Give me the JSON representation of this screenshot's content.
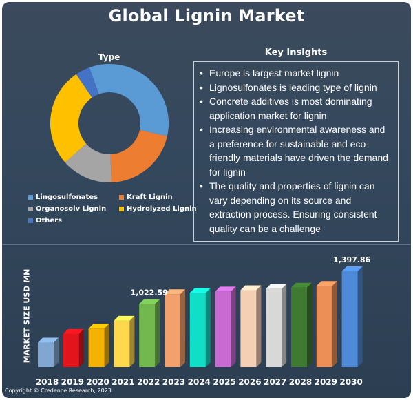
{
  "title": "Global Lignin Market",
  "chart_data": [
    {
      "type": "pie",
      "variant": "donut",
      "title": "Type",
      "categories": [
        "Lingosulfonates",
        "Kraft Lignin",
        "Organosolv Lignin",
        "Hydrolyzed Lignin",
        "Others"
      ],
      "values": [
        34,
        21,
        14,
        27,
        4
      ],
      "colors": [
        "#5b9bd5",
        "#ed7d31",
        "#a5a5a5",
        "#ffc000",
        "#4472c4"
      ],
      "legend": [
        {
          "label": "Lingosulfonates",
          "color": "#5b9bd5"
        },
        {
          "label": "Kraft Lignin",
          "color": "#ed7d31"
        },
        {
          "label": "Organosolv Lignin",
          "color": "#a5a5a5"
        },
        {
          "label": "Hydrolyzed Lignin",
          "color": "#ffc000"
        },
        {
          "label": "Others",
          "color": "#4472c4"
        }
      ]
    },
    {
      "type": "bar",
      "title": "",
      "categories": [
        "2018",
        "2019",
        "2020",
        "2021",
        "2022",
        "2023",
        "2024",
        "2025",
        "2026",
        "2027",
        "2028",
        "2029",
        "2030"
      ],
      "values": [
        580,
        680,
        740,
        830,
        1022.59,
        1135,
        1150,
        1165,
        1180,
        1195,
        1210,
        1230,
        1397.86
      ],
      "ylabel": "MARKET SIZE USD MN",
      "xlabel": "",
      "ylim": [
        300,
        1500
      ],
      "data_labels": [
        {
          "index": 4,
          "text": "1,022.59"
        },
        {
          "index": 12,
          "text": "1,397.86"
        }
      ],
      "colors": [
        "#7fa7d2",
        "#e3141b",
        "#f5b300",
        "#ffd84d",
        "#72b84f",
        "#f2a06c",
        "#10dfc7",
        "#c86ad2",
        "#f5cfb4",
        "#d8d8d8",
        "#3e7a2f",
        "#ec8f57",
        "#4f8ad8"
      ]
    }
  ],
  "insights": {
    "title": "Key Insights",
    "items": [
      "Europe is largest market lignin",
      "Lignosulfonates is leading type of lignin",
      "Concrete additives is most dominating application market for lignin",
      "Increasing environmental awareness and a preference for sustainable and eco-friendly materials have driven the demand for lignin",
      "The quality and properties of lignin can vary depending on its source and extraction process. Ensuring consistent quality can be a challenge"
    ]
  },
  "copyright": "Copyright © Credence Research, 2023"
}
